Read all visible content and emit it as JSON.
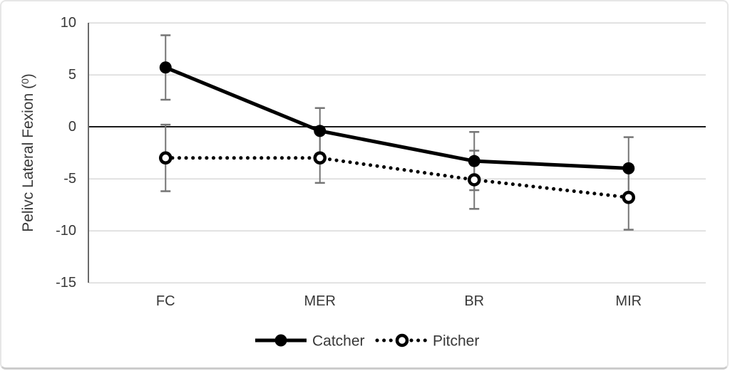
{
  "figure": {
    "background": "#ffffff",
    "border_color": "#e6e6e6",
    "border_bottom_color": "#cccccc"
  },
  "chart_data": {
    "type": "line",
    "title": "",
    "xlabel": "",
    "ylabel": "Pelivc Lateral Fexion (⁰)",
    "categories": [
      "FC",
      "MER",
      "BR",
      "MIR"
    ],
    "series": [
      {
        "name": "Catcher",
        "values": [
          5.7,
          -0.4,
          -3.3,
          -4.0
        ],
        "error": [
          3.1,
          2.2,
          2.8,
          3.0
        ],
        "line_style": "solid",
        "marker": "filled-circle",
        "color": "#000000"
      },
      {
        "name": "Pitcher",
        "values": [
          -3.0,
          -3.0,
          -5.1,
          -6.8
        ],
        "error": [
          3.2,
          2.4,
          2.8,
          3.1
        ],
        "line_style": "dotted",
        "marker": "open-circle",
        "color": "#000000"
      }
    ],
    "ylim": [
      -15,
      10
    ],
    "yticks": [
      10,
      5,
      0,
      -5,
      -10,
      -15
    ],
    "grid": "horizontal",
    "legend_position": "bottom-center",
    "colors": {
      "gridline": "#d9d9d9",
      "zero_line": "#1a1a1a",
      "axis_line": "#6b6b6b",
      "error_bar": "#757575",
      "text": "#383838"
    }
  }
}
